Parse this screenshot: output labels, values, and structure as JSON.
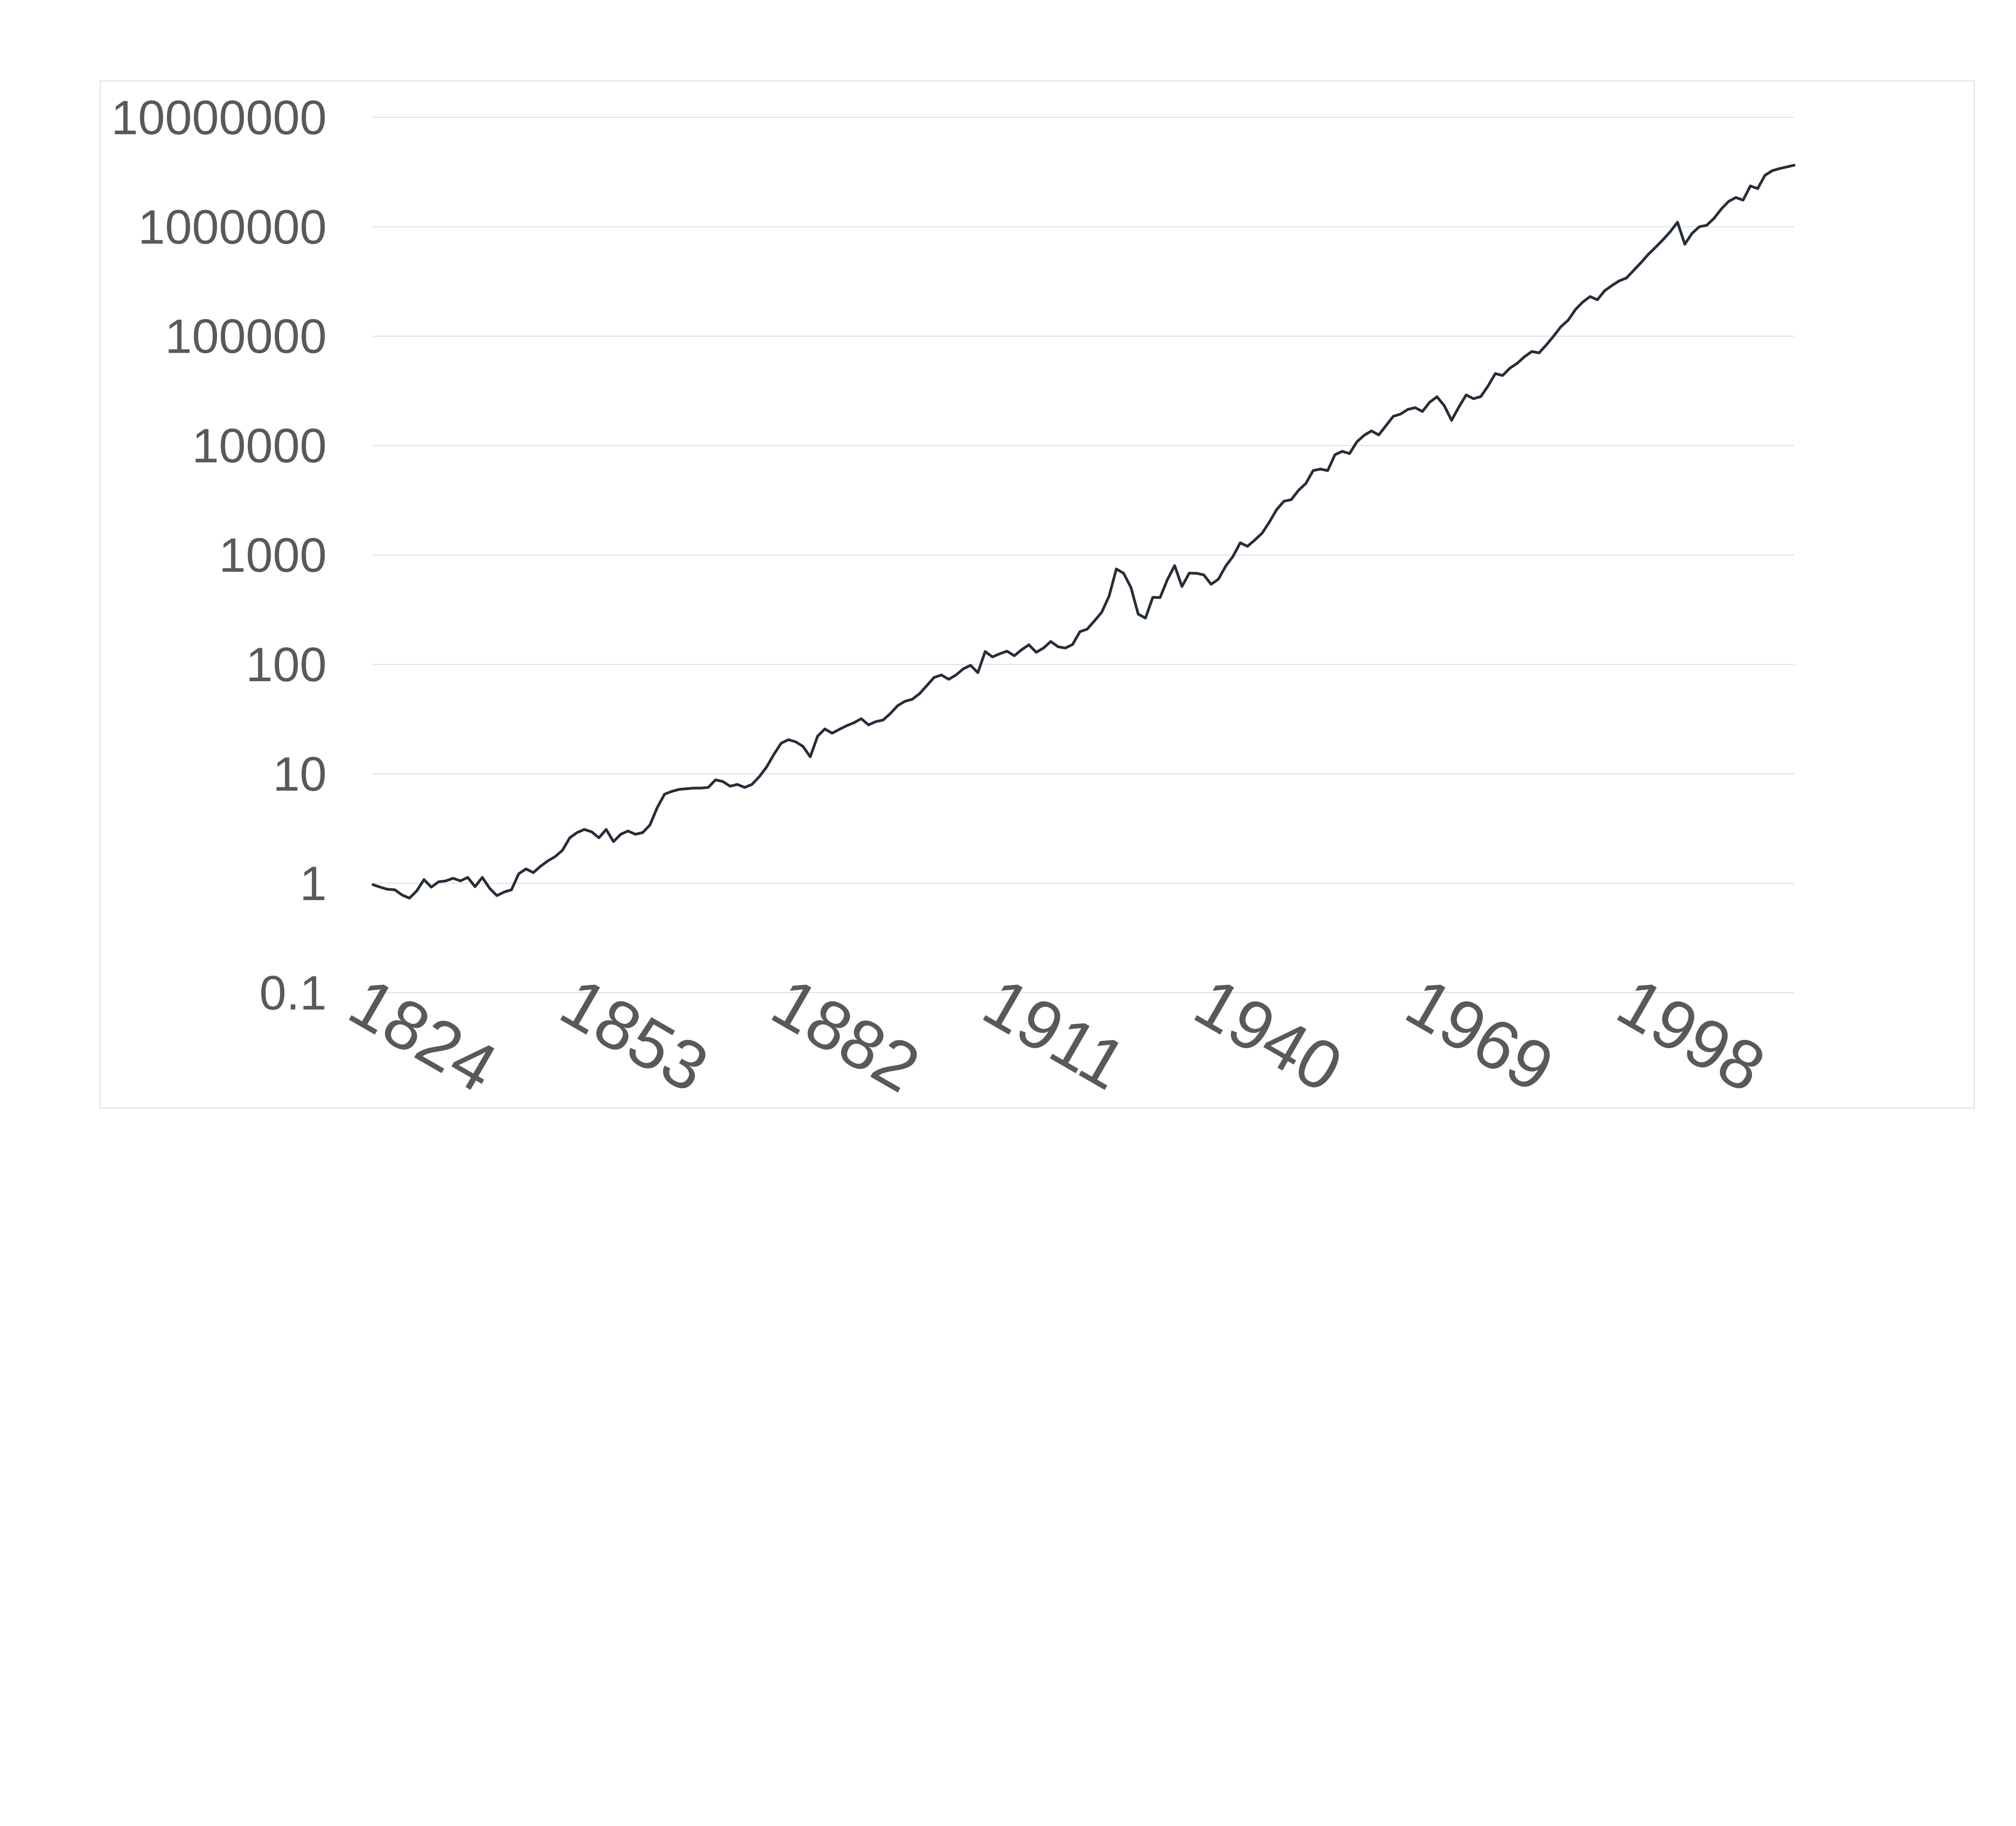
{
  "chart_data": {
    "type": "line",
    "title": "",
    "legend": false,
    "gridlines": true,
    "y_axis": {
      "scale": "log",
      "min": 0.1,
      "max": 10000000,
      "tick_labels": [
        "10000000",
        "1000000",
        "100000",
        "10000",
        "1000",
        "100",
        "10",
        "1",
        "0.1"
      ],
      "tick_values": [
        10000000,
        1000000,
        100000,
        10000,
        1000,
        100,
        10,
        1,
        0.1
      ]
    },
    "x_axis": {
      "tick_labels": [
        "1824",
        "1853",
        "1882",
        "1911",
        "1940",
        "1969",
        "1998"
      ],
      "tick_values": [
        1824,
        1853,
        1882,
        1911,
        1940,
        1969,
        1998
      ],
      "label_rotation_deg": 30
    },
    "x_range": {
      "start": 1823,
      "end": 2018,
      "step": 1
    },
    "series": [
      {
        "name": "cumulative-value",
        "values": [
          0.97,
          0.92,
          0.88,
          0.87,
          0.78,
          0.73,
          0.85,
          1.08,
          0.92,
          1.03,
          1.05,
          1.11,
          1.05,
          1.13,
          0.93,
          1.13,
          0.9,
          0.77,
          0.83,
          0.87,
          1.22,
          1.35,
          1.25,
          1.43,
          1.6,
          1.75,
          2.0,
          2.6,
          2.9,
          3.1,
          2.95,
          2.6,
          3.1,
          2.4,
          2.8,
          3.0,
          2.8,
          2.9,
          3.4,
          4.9,
          6.5,
          6.9,
          7.2,
          7.3,
          7.4,
          7.4,
          7.5,
          8.8,
          8.5,
          7.7,
          8.0,
          7.5,
          8.0,
          9.4,
          11.5,
          15,
          19,
          20.5,
          19.6,
          17.8,
          14.3,
          22,
          25.7,
          23.5,
          25.5,
          27.5,
          29.3,
          31.9,
          28,
          30,
          31,
          35.6,
          42,
          46,
          48,
          54,
          64,
          76,
          80,
          73,
          80,
          91,
          98,
          84,
          131,
          117,
          125,
          132,
          120,
          136,
          151,
          129,
          141,
          162,
          145,
          141,
          152,
          199,
          210,
          250,
          300,
          420,
          745,
          680,
          505,
          288,
          265,
          410,
          408,
          594,
          800,
          515,
          682,
          680,
          657,
          540,
          600,
          790,
          970,
          1290,
          1200,
          1370,
          1580,
          2000,
          2600,
          3100,
          3200,
          3900,
          4500,
          5900,
          6100,
          5900,
          8250,
          8850,
          8450,
          10800,
          12400,
          13600,
          12500,
          15200,
          18500,
          19400,
          21400,
          22200,
          20500,
          24900,
          27900,
          23100,
          17000,
          22500,
          29000,
          26800,
          28000,
          35000,
          45500,
          43700,
          51000,
          56400,
          64800,
          72300,
          70300,
          83000,
          100000,
          122000,
          140000,
          175000,
          205000,
          230000,
          215000,
          260000,
          290000,
          320000,
          340000,
          400000,
          470000,
          560000,
          650000,
          760000,
          900000,
          1100000,
          692000,
          870000,
          1000000,
          1030000,
          1190000,
          1450000,
          1700000,
          1850000,
          1750000,
          2360000,
          2230000,
          2950000,
          3250000,
          3400000,
          3520000,
          3650000
        ]
      }
    ],
    "colors": {
      "line": "#252e39",
      "gridline": "#d9d9d9",
      "chart_border": "#d9d9d9",
      "axis_label": "#595959",
      "background": "#ffffff"
    }
  }
}
